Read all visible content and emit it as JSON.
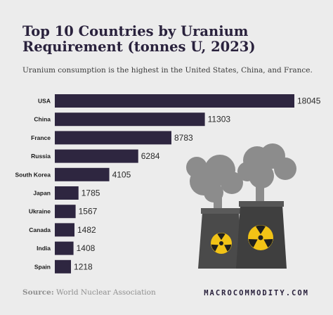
{
  "chart_data": {
    "type": "bar",
    "orientation": "horizontal",
    "title": "Top 10 Countries by Uranium Requirement (tonnes U, 2023)",
    "subtitle": "Uranium consumption is the highest in the United States, China, and France.",
    "categories": [
      "USA",
      "China",
      "France",
      "Russia",
      "South Korea",
      "Japan",
      "Ukraine",
      "Canada",
      "India",
      "Spain"
    ],
    "values": [
      18045,
      11303,
      8783,
      6284,
      4105,
      1785,
      1567,
      1482,
      1408,
      1218
    ],
    "value_labels": [
      "18045",
      "11303",
      "8783",
      "6284",
      "4105",
      "1785",
      "1567",
      "1482",
      "1408",
      "1218"
    ],
    "xlim": [
      0,
      18045
    ],
    "grid": false,
    "bar_color": "#2e2640"
  },
  "footer": {
    "source_label": "Source:",
    "source_text": "World Nuclear Association",
    "brand": "MACROCOMMODITY.COM"
  },
  "colors": {
    "background": "#ececec",
    "text_dark": "#2a223d",
    "smoke": "#8c8c8c",
    "tower": "#4a4a4a",
    "trefoil_yellow": "#f2c316"
  },
  "illustration": {
    "icon": "nuclear-power-plant-icon"
  }
}
